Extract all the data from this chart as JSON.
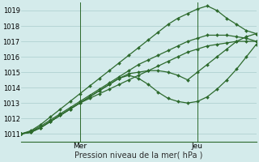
{
  "title": "",
  "xlabel": "Pression niveau de la mer( hPa )",
  "ylabel": "",
  "background_color": "#d4ebeb",
  "grid_color": "#aacccc",
  "line_color": "#2d6a2d",
  "ylim": [
    1010.5,
    1019.5
  ],
  "xlim": [
    0,
    48
  ],
  "yticks": [
    1011,
    1012,
    1013,
    1014,
    1015,
    1016,
    1017,
    1018,
    1019
  ],
  "xtick_positions": [
    12,
    36
  ],
  "xtick_labels": [
    "Mer",
    "Jeu"
  ],
  "vlines": [
    12,
    36
  ],
  "series": [
    {
      "x": [
        0,
        2,
        4,
        6,
        8,
        10,
        12,
        14,
        16,
        18,
        20,
        22,
        24,
        26,
        28,
        30,
        32,
        34,
        36,
        38,
        40,
        42,
        44,
        46,
        48
      ],
      "y": [
        1011.0,
        1011.1,
        1011.4,
        1011.8,
        1012.2,
        1012.6,
        1013.0,
        1013.3,
        1013.6,
        1013.9,
        1014.2,
        1014.5,
        1014.8,
        1015.1,
        1015.4,
        1015.7,
        1016.0,
        1016.3,
        1016.5,
        1016.7,
        1016.8,
        1016.9,
        1017.0,
        1017.0,
        1017.0
      ]
    },
    {
      "x": [
        0,
        2,
        4,
        6,
        8,
        10,
        12,
        14,
        16,
        18,
        20,
        22,
        24,
        26,
        28,
        30,
        32,
        34,
        36,
        38,
        40,
        42,
        44,
        46,
        48
      ],
      "y": [
        1011.0,
        1011.1,
        1011.4,
        1011.8,
        1012.2,
        1012.6,
        1013.0,
        1013.4,
        1013.8,
        1014.2,
        1014.6,
        1014.8,
        1014.6,
        1014.2,
        1013.7,
        1013.3,
        1013.1,
        1013.0,
        1013.1,
        1013.4,
        1013.9,
        1014.5,
        1015.2,
        1016.0,
        1016.8
      ]
    },
    {
      "x": [
        0,
        2,
        4,
        6,
        8,
        10,
        12,
        14,
        16,
        18,
        20,
        22,
        24,
        26,
        28,
        30,
        32,
        34,
        36,
        38,
        40,
        42,
        44,
        46,
        48
      ],
      "y": [
        1011.0,
        1011.1,
        1011.4,
        1011.8,
        1012.2,
        1012.6,
        1013.0,
        1013.4,
        1013.8,
        1014.2,
        1014.6,
        1014.9,
        1015.0,
        1015.1,
        1015.1,
        1015.0,
        1014.8,
        1014.5,
        1015.0,
        1015.5,
        1016.0,
        1016.5,
        1017.0,
        1017.3,
        1017.5
      ]
    },
    {
      "x": [
        0,
        2,
        4,
        6,
        8,
        10,
        12,
        14,
        16,
        18,
        20,
        22,
        24,
        26,
        28,
        30,
        32,
        34,
        36,
        38,
        40,
        42,
        44,
        46,
        48
      ],
      "y": [
        1011.0,
        1011.2,
        1011.6,
        1012.1,
        1012.6,
        1013.1,
        1013.6,
        1014.1,
        1014.6,
        1015.1,
        1015.6,
        1016.1,
        1016.6,
        1017.1,
        1017.6,
        1018.1,
        1018.5,
        1018.8,
        1019.1,
        1019.3,
        1019.0,
        1018.5,
        1018.1,
        1017.7,
        1017.5
      ]
    },
    {
      "x": [
        0,
        2,
        4,
        6,
        8,
        10,
        12,
        14,
        16,
        18,
        20,
        22,
        24,
        26,
        28,
        30,
        32,
        34,
        36,
        38,
        40,
        42,
        44,
        46,
        48
      ],
      "y": [
        1011.0,
        1011.15,
        1011.5,
        1011.9,
        1012.3,
        1012.7,
        1013.1,
        1013.5,
        1013.9,
        1014.3,
        1014.7,
        1015.1,
        1015.5,
        1015.8,
        1016.1,
        1016.4,
        1016.7,
        1017.0,
        1017.2,
        1017.4,
        1017.4,
        1017.4,
        1017.3,
        1017.2,
        1017.0
      ]
    }
  ],
  "marker": "D",
  "marker_size": 2.0,
  "linewidth": 0.9
}
